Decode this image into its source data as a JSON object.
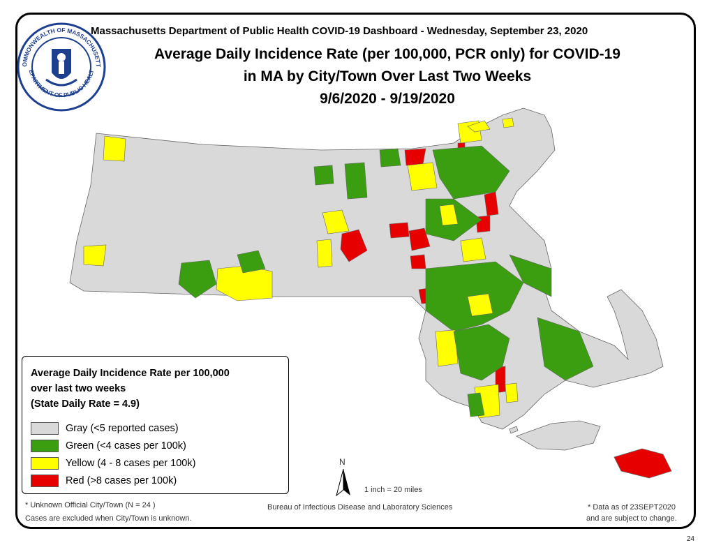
{
  "header": {
    "dashboard_line": "Massachusetts Department of Public Health COVID-19 Dashboard - Wednesday, September 23, 2020",
    "title_line1": "Average Daily Incidence Rate (per 100,000, PCR only) for COVID-19",
    "title_line2": "in MA by City/Town Over Last Two Weeks",
    "title_line3": "9/6/2020 - 9/19/2020"
  },
  "seal": {
    "text_top": "COMMONWEALTH OF MASSACHUSETTS",
    "text_bottom": "DEPARTMENT OF PUBLIC HEALTH"
  },
  "legend": {
    "title_line1": "Average Daily Incidence Rate per 100,000",
    "title_line2": "over last two weeks",
    "title_line3": "(State Daily Rate = 4.9)",
    "items": [
      {
        "label": "Gray (<5 reported cases)",
        "color": "#d9d9d9"
      },
      {
        "label": "Green (<4 cases per 100k)",
        "color": "#3a9e10"
      },
      {
        "label": "Yellow (4 - 8 cases per 100k)",
        "color": "#ffff00"
      },
      {
        "label": "Red (>8 cases per 100k)",
        "color": "#e60000"
      }
    ]
  },
  "scale": {
    "north_label": "N",
    "scale_text": "1 inch = 20 miles"
  },
  "footer": {
    "unknown_line1": "* Unknown Official City/Town (N = 24 )",
    "unknown_line2": "Cases are excluded when City/Town is unknown.",
    "bureau": "Bureau of Infectious Disease and Laboratory Sciences",
    "data_asof_line1": "* Data as of 23SEPT2020",
    "data_asof_line2": "and are subject to change.",
    "page_number": "24"
  },
  "colors": {
    "gray": "#d9d9d9",
    "green": "#3a9e10",
    "yellow": "#ffff00",
    "red": "#e60000",
    "seal_blue": "#1c3f8f"
  }
}
